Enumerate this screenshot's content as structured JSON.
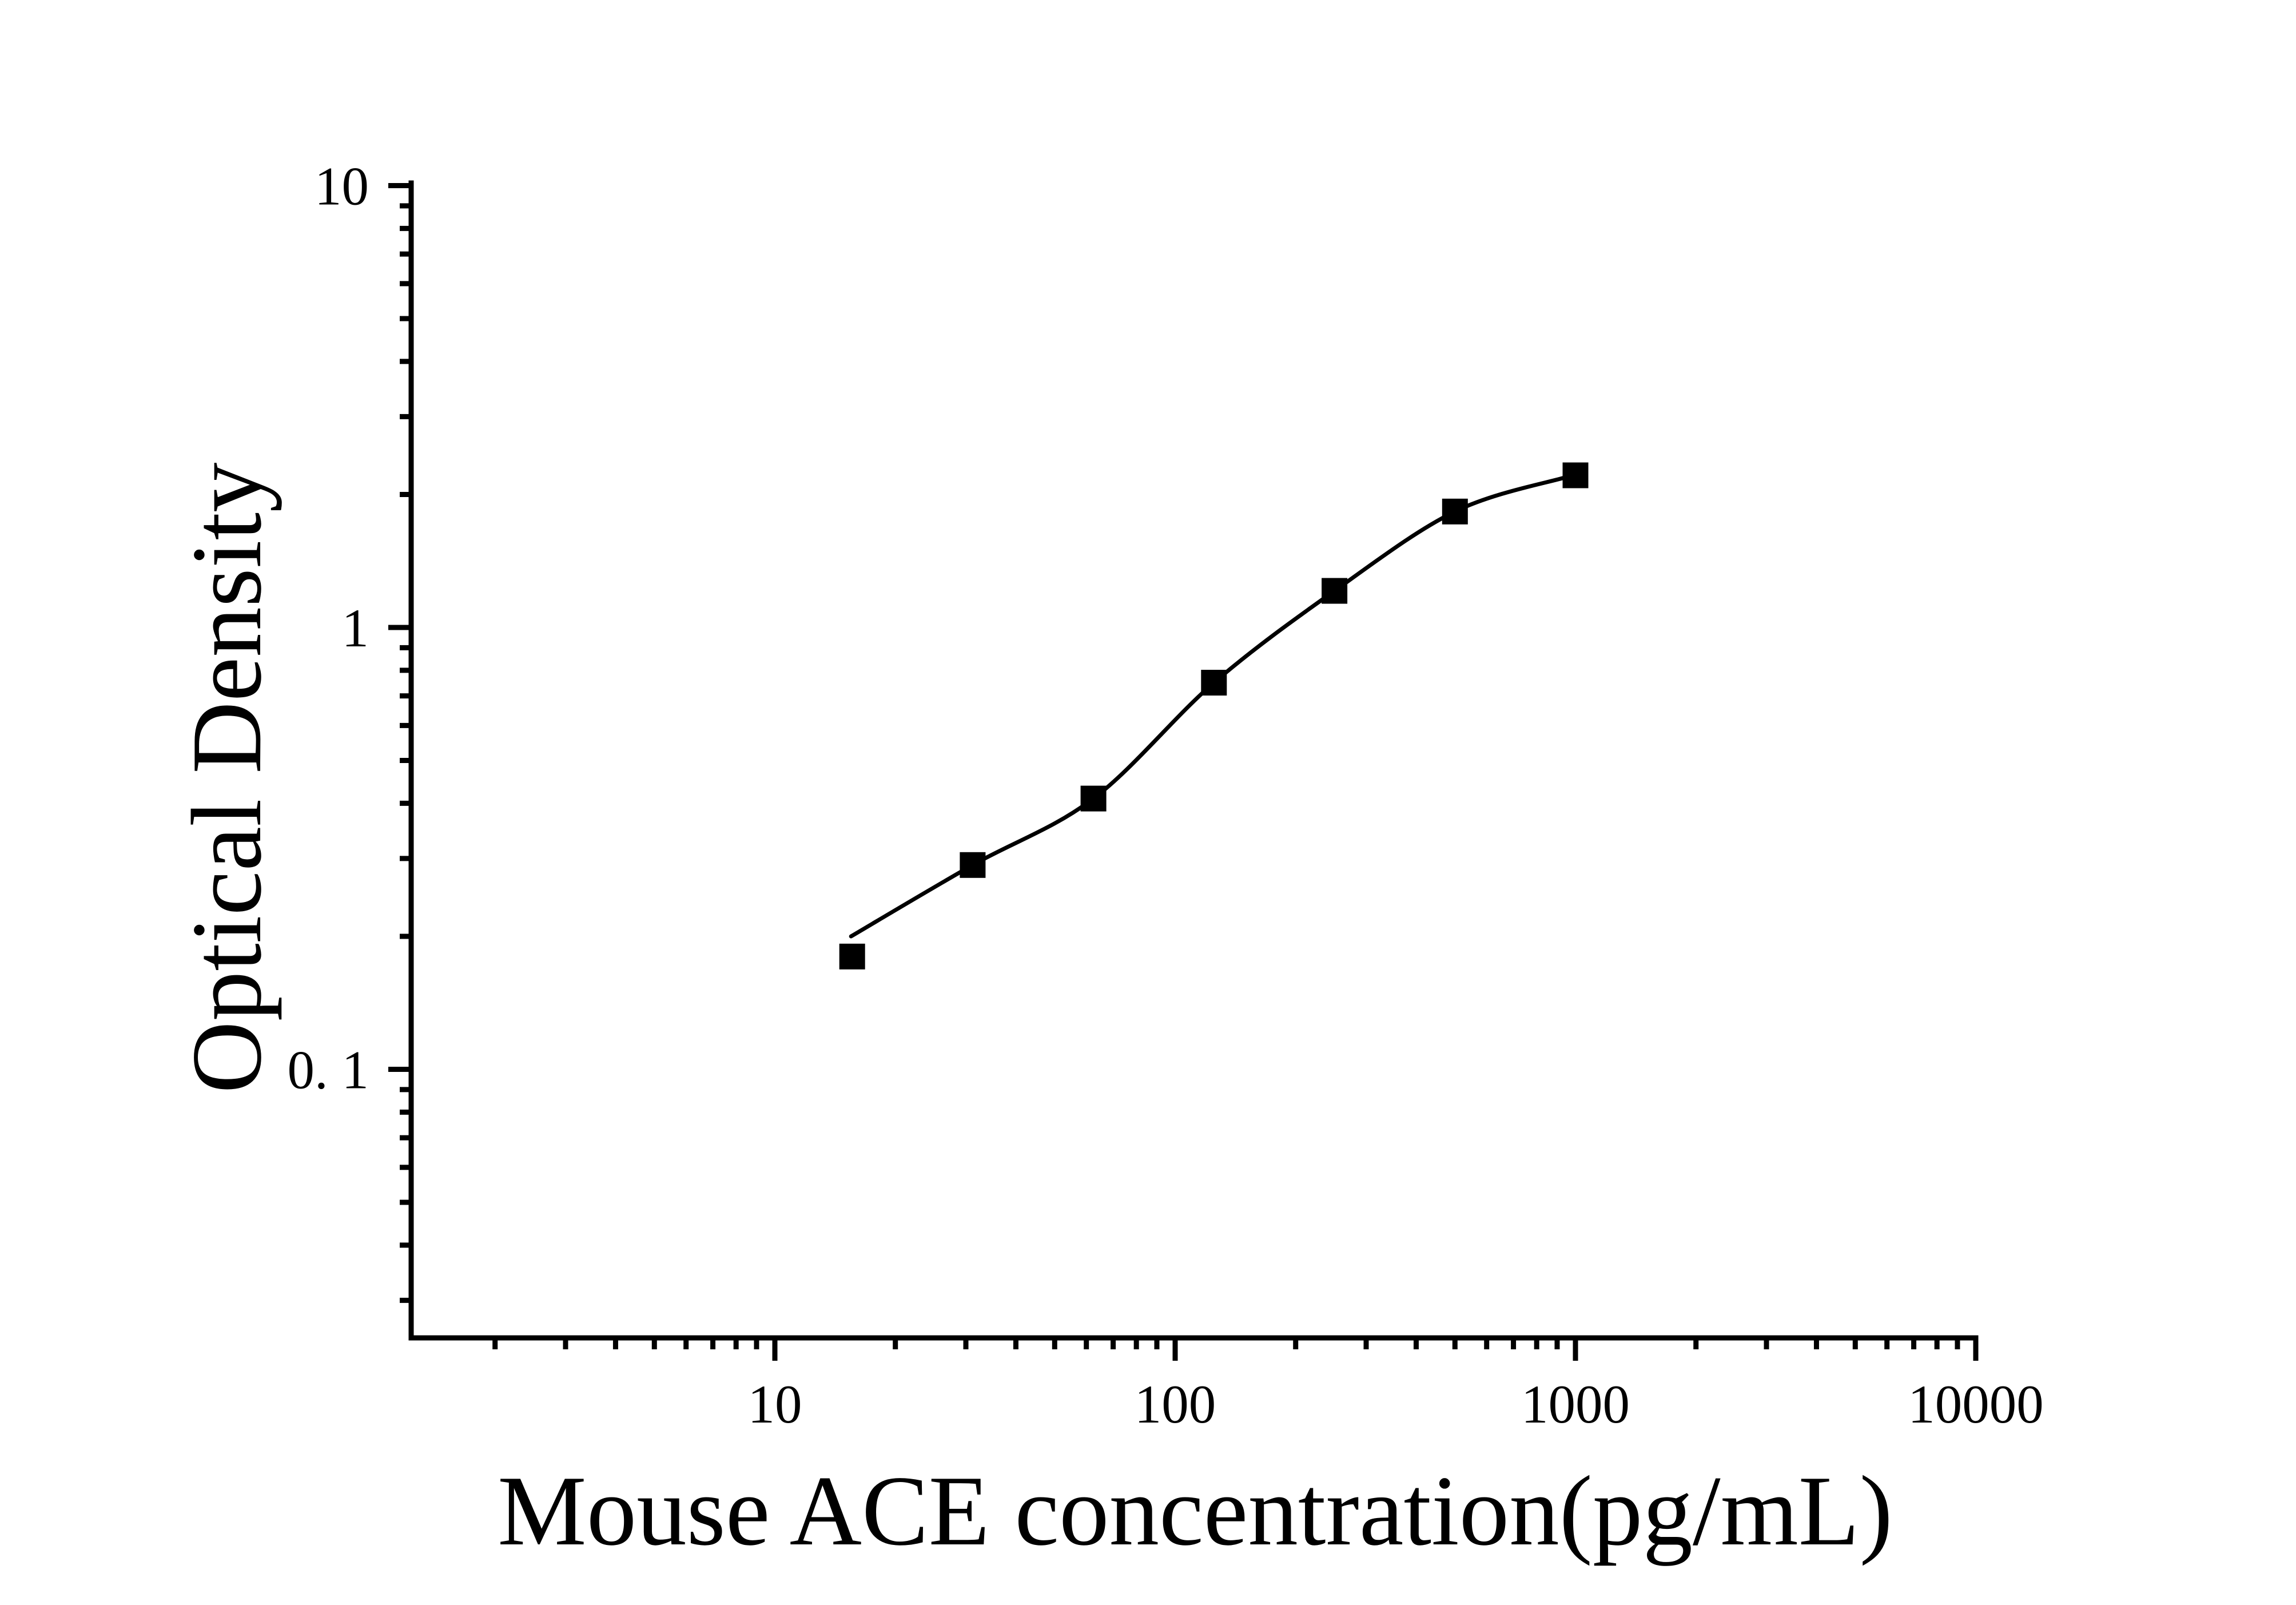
{
  "figure": {
    "background_color": "#ffffff",
    "ink_color": "#000000"
  },
  "chart_data": {
    "type": "scatter",
    "title": "",
    "xlabel": "Mouse ACE concentration(pg/mL)",
    "ylabel": "Optical Density",
    "x_scale": "log",
    "y_scale": "log",
    "xlim": [
      1.23,
      10000
    ],
    "ylim": [
      0.025,
      10.1
    ],
    "grid": false,
    "legend_position": "none",
    "marker_style": "filled-square",
    "line_style": "smooth-fit-curve",
    "x_ticks": {
      "major_values": [
        10,
        100,
        1000,
        10000
      ],
      "labels": [
        "10",
        "100",
        "1000",
        "10000"
      ]
    },
    "y_ticks": {
      "major_values": [
        10,
        1,
        0.1
      ],
      "labels": [
        "10",
        "1",
        "0. 1"
      ]
    },
    "points": [
      {
        "concentration": 15.6,
        "od": 0.18
      },
      {
        "concentration": 31.2,
        "od": 0.29
      },
      {
        "concentration": 62.5,
        "od": 0.41
      },
      {
        "concentration": 125,
        "od": 0.75
      },
      {
        "concentration": 250,
        "od": 1.21
      },
      {
        "concentration": 500,
        "od": 1.83
      },
      {
        "concentration": 1000,
        "od": 2.21
      }
    ],
    "fit_curve_trace": [
      {
        "concentration": 15.5,
        "od": 0.2
      },
      {
        "concentration": 31.2,
        "od": 0.29
      },
      {
        "concentration": 62.5,
        "od": 0.41
      },
      {
        "concentration": 125,
        "od": 0.75
      },
      {
        "concentration": 250,
        "od": 1.21
      },
      {
        "concentration": 500,
        "od": 1.83
      },
      {
        "concentration": 950,
        "od": 2.19
      }
    ]
  }
}
